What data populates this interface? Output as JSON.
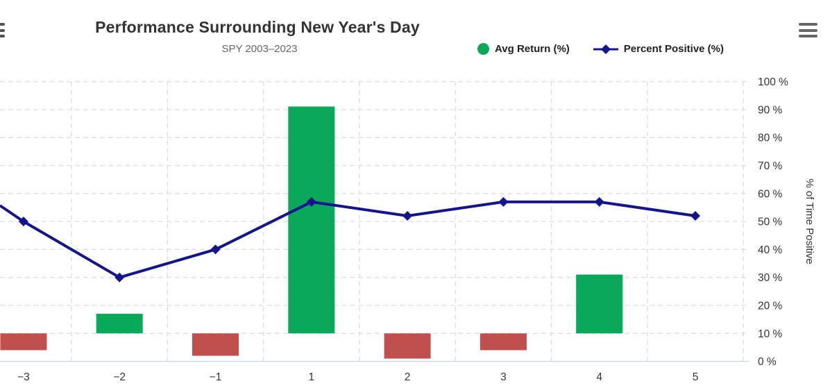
{
  "header": {
    "title": "Performance Surrounding New Year's Day",
    "subtitle": "SPY 2003–2023"
  },
  "legend": {
    "items": [
      {
        "label": "Avg Return (%)",
        "marker": "green-circle"
      },
      {
        "label": "Percent Positive (%)",
        "marker": "navy-diamond-line"
      }
    ]
  },
  "y_axis_right": {
    "title": "% of Time Positive",
    "ticks": [
      "0 %",
      "10 %",
      "20 %",
      "30 %",
      "40 %",
      "50 %",
      "60 %",
      "70 %",
      "80 %",
      "90 %",
      "100 %"
    ],
    "range": [
      0,
      100
    ]
  },
  "x_axis": {
    "labels": [
      "−3",
      "−2",
      "−1",
      "1",
      "2",
      "3",
      "4",
      "5"
    ]
  },
  "chart_data": {
    "type": "combo (bar + line)",
    "title": "Performance Surrounding New Year's Day",
    "subtitle": "SPY 2003–2023",
    "categories": [
      -3,
      -2,
      -1,
      1,
      2,
      3,
      4,
      5
    ],
    "series": [
      {
        "name": "Avg Return (%)",
        "type": "bar",
        "axis": "left (cropped off-screen; values estimated at 0.1%/gridline)",
        "values": [
          -0.06,
          0.07,
          -0.08,
          0.81,
          -0.09,
          -0.06,
          0.21,
          0
        ]
      },
      {
        "name": "Percent Positive (%)",
        "type": "line",
        "axis": "right",
        "values": [
          50,
          30,
          40,
          57,
          52,
          57,
          57,
          52
        ],
        "left_edge_entry_pct": 55.7
      }
    ],
    "ylabel_right": "% of Time Positive",
    "ylim_right": [
      0,
      100
    ],
    "grid": "dashed, both directions",
    "legend_position": "top"
  },
  "colors": {
    "bar_positive": "#0AA95A",
    "bar_negative": "#C0504D",
    "line": "#14148C",
    "grid": "#DDDDDD",
    "axis_line": "#CCD6EB",
    "text": "#333333",
    "subtext": "#666666"
  },
  "icons": {
    "menu": "hamburger-menu-icon"
  }
}
